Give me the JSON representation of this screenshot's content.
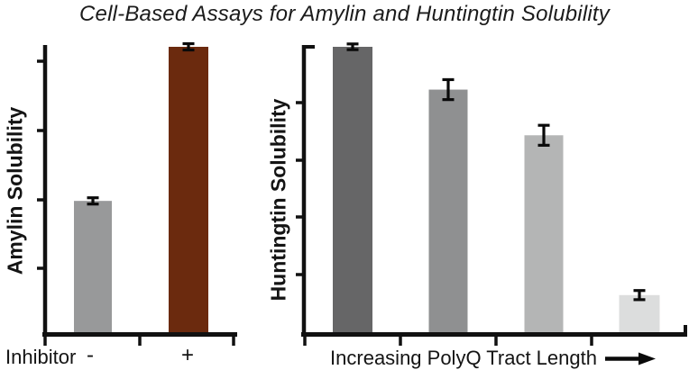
{
  "title": "Cell-Based Assays for Amylin and Huntingtin Solubility",
  "colors": {
    "axis": "#111111",
    "text": "#1b1b1b",
    "error_bar": "#0a0a0a",
    "background": "#ffffff",
    "amylin_accent": "#6B2A0E"
  },
  "icons": {
    "x_axis_direction": "arrow-right"
  },
  "chart_data": [
    {
      "type": "bar",
      "ylabel": "Amylin Solubility",
      "xlabel": "Inhibitor",
      "categories": [
        "-",
        "+"
      ],
      "values": [
        0.46,
        1.0
      ],
      "errors": [
        0.011,
        0.011
      ],
      "bar_colors": [
        "#98999A",
        "#6B2A0E"
      ],
      "ylim": [
        0,
        1
      ],
      "grid": false,
      "axis_numeric_labels": false,
      "legend": "none"
    },
    {
      "type": "bar",
      "ylabel": "Huntingtin Solubility",
      "xlabel": "Increasing PolyQ Tract Length",
      "categories": [
        "",
        "",
        "",
        ""
      ],
      "values": [
        1.0,
        0.85,
        0.69,
        0.13
      ],
      "errors": [
        0.01,
        0.035,
        0.035,
        0.016
      ],
      "bar_colors": [
        "#666667",
        "#8F9091",
        "#B4B5B5",
        "#DCDDDD"
      ],
      "ylim": [
        0,
        1
      ],
      "grid": false,
      "axis_numeric_labels": false,
      "legend": "none"
    }
  ]
}
